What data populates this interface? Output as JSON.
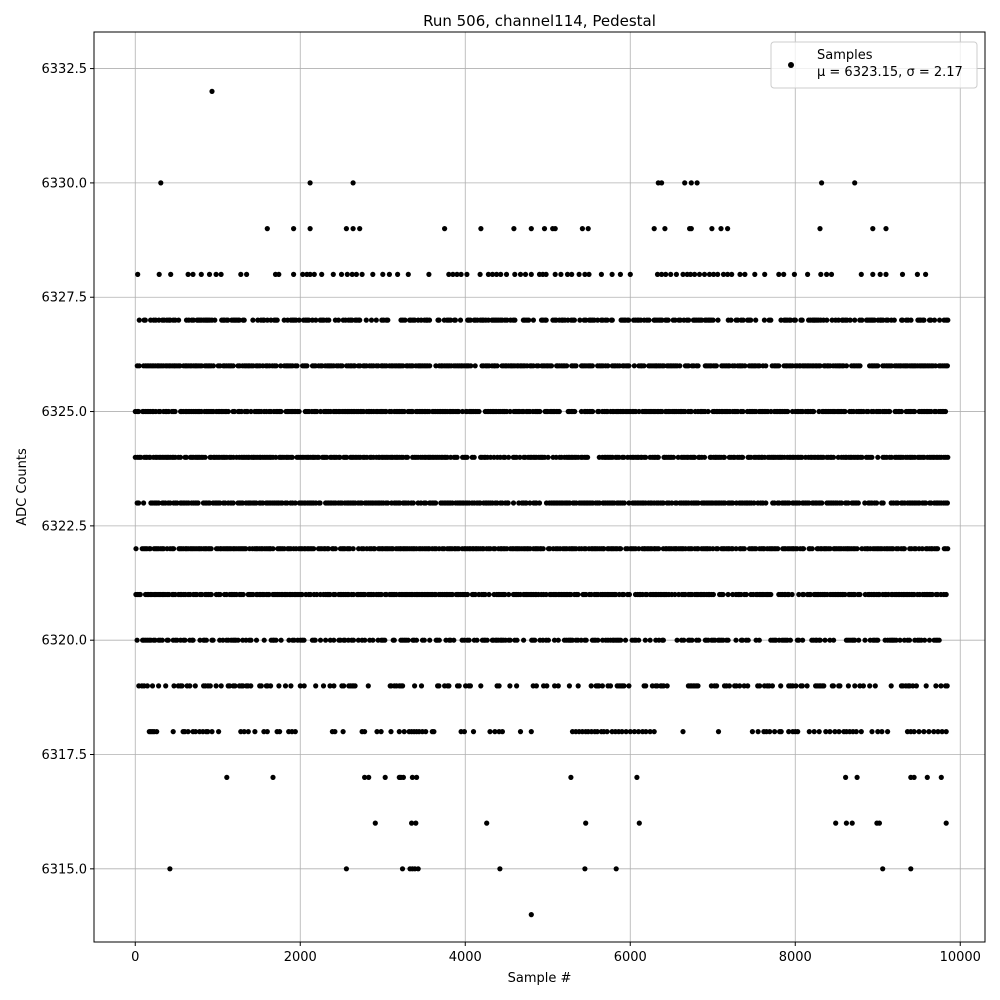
{
  "chart_data": {
    "type": "scatter",
    "title": "Run 506, channel114, Pedestal",
    "xlabel": "Sample #",
    "ylabel": "ADC Counts",
    "xlim": [
      -500,
      10300
    ],
    "ylim": [
      6313.4,
      6333.3
    ],
    "xticks": [
      0,
      2000,
      4000,
      6000,
      8000,
      10000
    ],
    "yticks": [
      6315.0,
      6317.5,
      6320.0,
      6322.5,
      6325.0,
      6327.5,
      6330.0,
      6332.5
    ],
    "xtick_labels": [
      "0",
      "2000",
      "4000",
      "6000",
      "8000",
      "10000"
    ],
    "ytick_labels": [
      "6315.0",
      "6317.5",
      "6320.0",
      "6322.5",
      "6325.0",
      "6327.5",
      "6330.0",
      "6332.5"
    ],
    "grid": true,
    "legend_position": "top-right",
    "series": [
      {
        "name": "Samples",
        "color": "#000000",
        "x_range": [
          0,
          9840
        ],
        "levels": [
          {
            "y": 6321,
            "segments": [
              [
                0,
                9840
              ]
            ]
          },
          {
            "y": 6322,
            "segments": [
              [
                0,
                9840
              ]
            ]
          },
          {
            "y": 6323,
            "segments": [
              [
                0,
                9840
              ]
            ]
          },
          {
            "y": 6324,
            "segments": [
              [
                0,
                9840
              ]
            ]
          },
          {
            "y": 6325,
            "segments": [
              [
                0,
                9840
              ]
            ]
          },
          {
            "y": 6326,
            "segments": [
              [
                0,
                9840
              ]
            ]
          },
          {
            "y": 6327,
            "segments": [
              [
                0,
                9840
              ]
            ]
          },
          {
            "y": 6320,
            "segments": [
              [
                0,
                9840
              ]
            ]
          },
          {
            "y": 6319,
            "segments": [
              [
                0,
                9840
              ]
            ]
          }
        ],
        "sparse_levels": [
          {
            "y": 6318,
            "x": [
              170,
              190,
              210,
              230,
              260,
              460,
              580,
              600,
              640,
              700,
              730,
              780,
              820,
              860,
              880,
              930,
              1010,
              1280,
              1320,
              1370,
              1450,
              1560,
              1600,
              1720,
              1750,
              1860,
              1900,
              1940,
              2390,
              2420,
              2520,
              2750,
              2780,
              2930,
              2980,
              3100,
              3200,
              3260,
              3320,
              3350,
              3380,
              3410,
              3440,
              3480,
              3520,
              3600,
              3620,
              3950,
              3990,
              4100,
              4300,
              4360,
              4410,
              4450,
              4670,
              4800,
              5300,
              5340,
              5380,
              5420,
              5460,
              5490,
              5530,
              5570,
              5600,
              5650,
              5680,
              5720,
              5780,
              5820,
              5860,
              5900,
              5950,
              6000,
              6050,
              6100,
              6150,
              6190,
              6240,
              6290,
              6640,
              7070,
              7480,
              7550,
              7620,
              7650,
              7690,
              7750,
              7810,
              7830,
              7920,
              7970,
              8000,
              8030,
              8170,
              8230,
              8290,
              8370,
              8420,
              8480,
              8530,
              8590,
              8620,
              8660,
              8700,
              8740,
              8800,
              8930,
              9000,
              9050,
              9120,
              9360,
              9400,
              9440,
              9500,
              9560,
              9620,
              9680,
              9730,
              9780,
              9830
            ]
          },
          {
            "y": 6317,
            "x": [
              1110,
              1670,
              2780,
              2830,
              3030,
              3200,
              3220,
              3250,
              3360,
              3410,
              5280,
              6080,
              8610,
              8750,
              9400,
              9440,
              9600,
              9770
            ]
          },
          {
            "y": 6316,
            "x": [
              2910,
              3350,
              3400,
              4260,
              5460,
              6110,
              8490,
              8620,
              8690,
              8990,
              9020,
              9830
            ]
          },
          {
            "y": 6315,
            "x": [
              420,
              2560,
              3240,
              3330,
              3360,
              3390,
              3430,
              4420,
              5450,
              5830,
              9060,
              9400
            ]
          },
          {
            "y": 6314,
            "x": [
              4800
            ]
          },
          {
            "y": 6328,
            "x": [
              30,
              290,
              430,
              640,
              700,
              800,
              900,
              980,
              1040,
              1280,
              1350,
              1700,
              1740,
              1920,
              2030,
              2080,
              2120,
              2170,
              2260,
              2400,
              2500,
              2570,
              2630,
              2680,
              2750,
              2880,
              3000,
              3080,
              3180,
              3310,
              3560,
              3800,
              3850,
              3900,
              3950,
              4020,
              4180,
              4280,
              4330,
              4380,
              4430,
              4500,
              4600,
              4670,
              4730,
              4800,
              4900,
              4940,
              4980,
              5090,
              5160,
              5240,
              5290,
              5380,
              5450,
              5500,
              5650,
              5780,
              5880,
              6000,
              6330,
              6380,
              6430,
              6490,
              6560,
              6640,
              6690,
              6730,
              6780,
              6840,
              6900,
              6960,
              7010,
              7060,
              7130,
              7180,
              7230,
              7330,
              7390,
              7510,
              7630,
              7800,
              7860,
              7990,
              8150,
              8310,
              8380,
              8440,
              8800,
              8940,
              9030,
              9100,
              9300,
              9480,
              9580
            ]
          },
          {
            "y": 6329,
            "x": [
              1600,
              1920,
              2120,
              2560,
              2640,
              2720,
              3750,
              4190,
              4590,
              4800,
              4960,
              5060,
              5090,
              5420,
              5490,
              6290,
              6420,
              6720,
              6740,
              6990,
              7100,
              7180,
              8300,
              8940,
              9100
            ]
          },
          {
            "y": 6330,
            "x": [
              310,
              2120,
              2640,
              6340,
              6380,
              6660,
              6740,
              6810,
              8320,
              8720
            ]
          },
          {
            "y": 6332,
            "x": [
              930
            ]
          }
        ]
      }
    ],
    "legend": {
      "entries": [
        {
          "label": "Samples",
          "sublabel": "μ = 6323.15, σ = 2.17"
        }
      ]
    }
  }
}
